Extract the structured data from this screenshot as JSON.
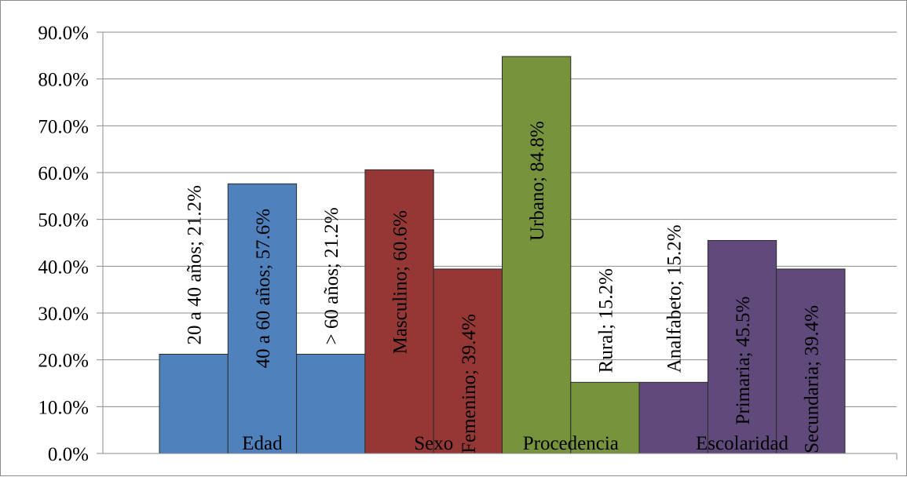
{
  "chart_data": {
    "type": "bar",
    "y_axis": {
      "min": 0,
      "max": 90,
      "step": 10,
      "tick_labels": [
        "0.0%",
        "10.0%",
        "20.0%",
        "30.0%",
        "40.0%",
        "50.0%",
        "60.0%",
        "70.0%",
        "80.0%",
        "90.0%"
      ]
    },
    "grid": true,
    "groups": [
      {
        "name": "Edad",
        "color": "#4f81bd",
        "categories": [
          "20 a 40 años",
          "40 a 60 años",
          "> 60 años"
        ],
        "values": [
          21.2,
          57.6,
          21.2
        ],
        "labels": [
          "20 a 40 años; 21.2%",
          "40 a 60 años; 57.6%",
          "> 60 años; 21.2%"
        ]
      },
      {
        "name": "Sexo",
        "color": "#953735",
        "categories": [
          "Masculino",
          "Femenino"
        ],
        "values": [
          60.6,
          39.4
        ],
        "labels": [
          "Masculino; 60.6%",
          "Femenino; 39.4%"
        ]
      },
      {
        "name": "Procedencia",
        "color": "#77933c",
        "categories": [
          "Urbano",
          "Rural"
        ],
        "values": [
          84.8,
          15.2
        ],
        "labels": [
          "Urbano; 84.8%",
          "Rural; 15.2%"
        ]
      },
      {
        "name": "Escolaridad",
        "color": "#604a7b",
        "categories": [
          "Analfabeto",
          "Primaria",
          "Secundaria"
        ],
        "values": [
          15.2,
          45.5,
          39.4
        ],
        "labels": [
          "Analfabeto; 15.2%",
          "Primaria; 45.5%",
          "Secundaria; 39.4%"
        ]
      }
    ]
  }
}
